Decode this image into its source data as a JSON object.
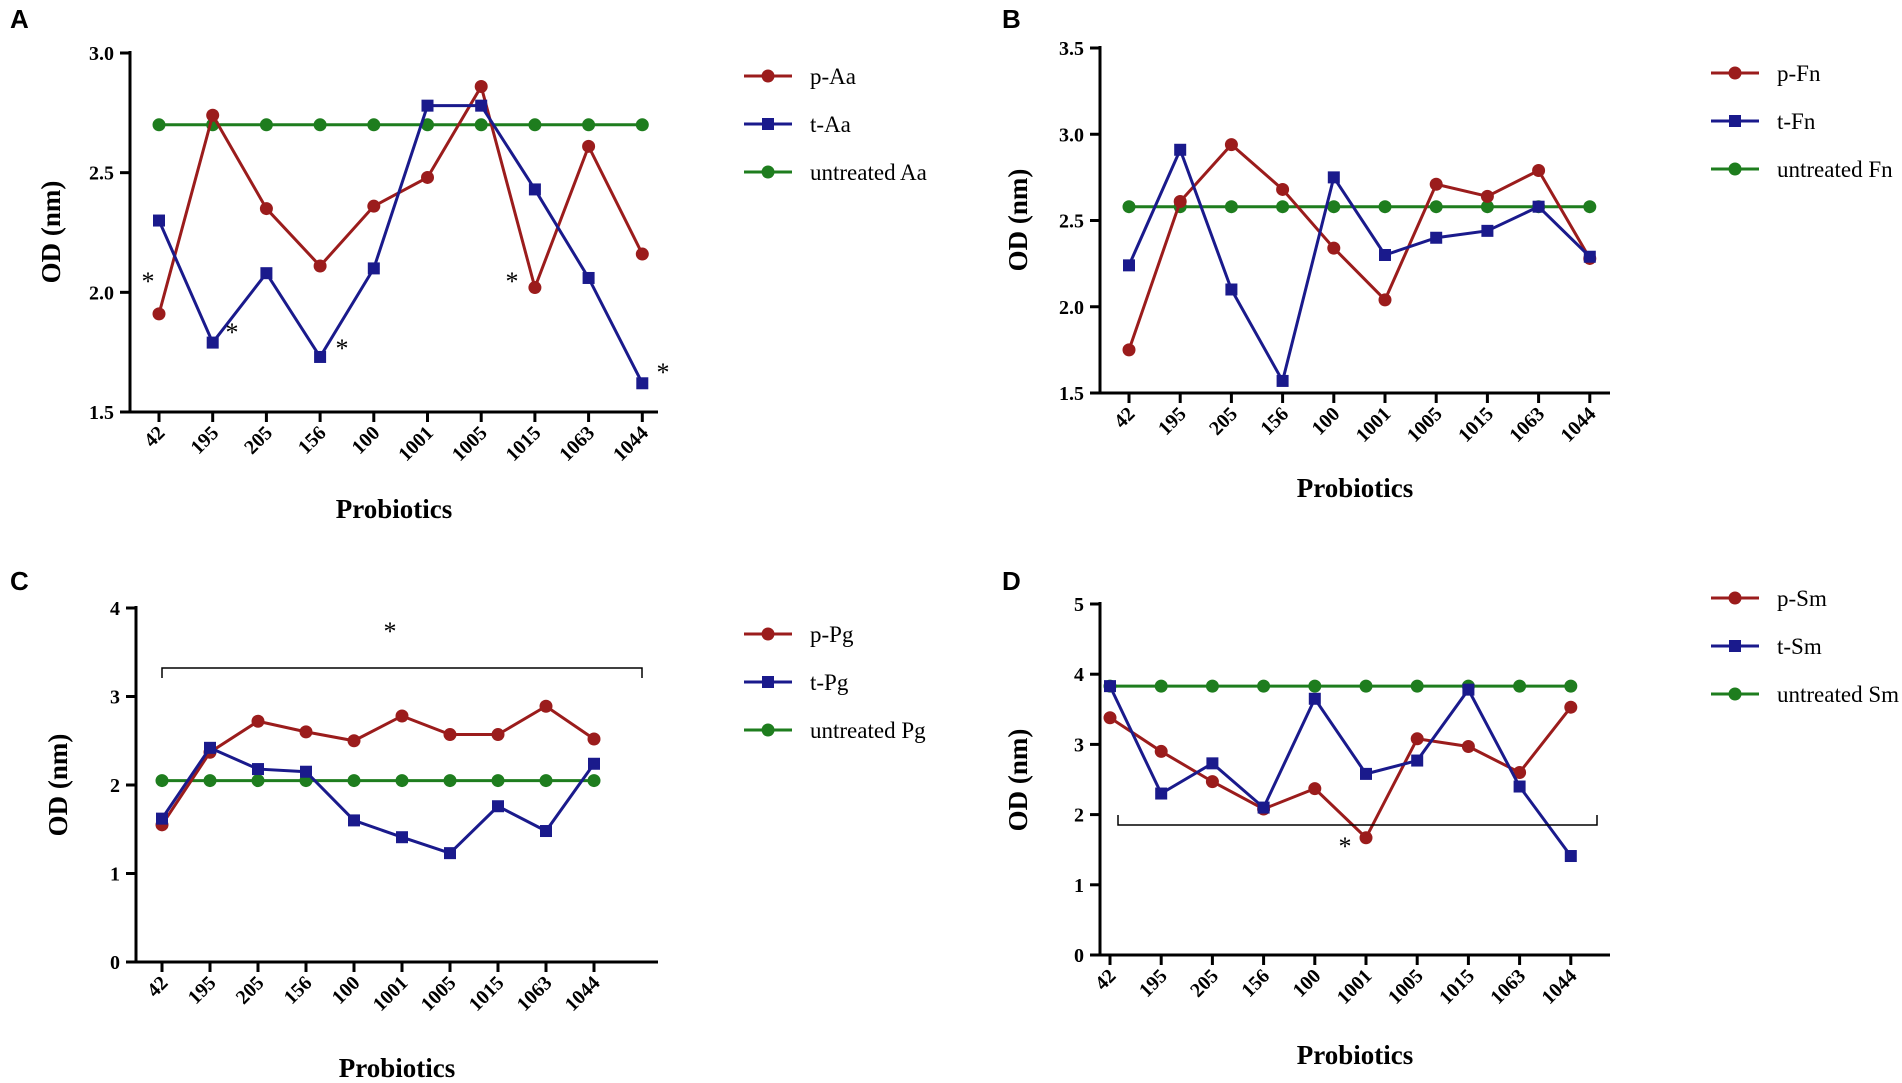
{
  "chart_data": [
    {
      "panel": "A",
      "type": "line",
      "xlabel": "Probiotics",
      "ylabel": "OD (nm)",
      "categories": [
        "42",
        "195",
        "205",
        "156",
        "100",
        "1001",
        "1005",
        "1015",
        "1063",
        "1044"
      ],
      "ylim": [
        1.5,
        3.0
      ],
      "yticks": [
        "1.5",
        "2.0",
        "2.5",
        "3.0"
      ],
      "series": [
        {
          "name": "p-Aa",
          "marker": "circle",
          "color": "#9b1c1c",
          "values": [
            1.91,
            2.74,
            2.35,
            2.11,
            2.36,
            2.48,
            2.86,
            2.02,
            2.61,
            2.16
          ]
        },
        {
          "name": "t-Aa",
          "marker": "square",
          "color": "#1a1a8c",
          "values": [
            2.3,
            1.79,
            2.08,
            1.73,
            2.1,
            2.78,
            2.78,
            2.43,
            2.06,
            1.62
          ]
        },
        {
          "name": "untreated Aa",
          "marker": "circle",
          "color": "#1e7d1e",
          "values": [
            2.7,
            2.7,
            2.7,
            2.7,
            2.7,
            2.7,
            2.7,
            2.7,
            2.7,
            2.7
          ]
        }
      ],
      "annotations": [
        "*",
        "*",
        "*",
        "*",
        "*"
      ]
    },
    {
      "panel": "B",
      "type": "line",
      "xlabel": "Probiotics",
      "ylabel": "OD (nm)",
      "categories": [
        "42",
        "195",
        "205",
        "156",
        "100",
        "1001",
        "1005",
        "1015",
        "1063",
        "1044"
      ],
      "ylim": [
        1.5,
        3.5
      ],
      "yticks": [
        "1.5",
        "2.0",
        "2.5",
        "3.0",
        "3.5"
      ],
      "series": [
        {
          "name": "p-Fn",
          "marker": "circle",
          "color": "#9b1c1c",
          "values": [
            1.75,
            2.61,
            2.94,
            2.68,
            2.34,
            2.04,
            2.71,
            2.64,
            2.79,
            2.28
          ]
        },
        {
          "name": "t-Fn",
          "marker": "square",
          "color": "#1a1a8c",
          "values": [
            2.24,
            2.91,
            2.1,
            1.57,
            2.75,
            2.3,
            2.4,
            2.44,
            2.58,
            2.29
          ]
        },
        {
          "name": "untreated Fn",
          "marker": "circle",
          "color": "#1e7d1e",
          "values": [
            2.58,
            2.58,
            2.58,
            2.58,
            2.58,
            2.58,
            2.58,
            2.58,
            2.58,
            2.58
          ]
        }
      ],
      "annotations": []
    },
    {
      "panel": "C",
      "type": "line",
      "xlabel": "Probiotics",
      "ylabel": "OD (nm)",
      "categories": [
        "42",
        "195",
        "205",
        "156",
        "100",
        "1001",
        "1005",
        "1015",
        "1063",
        "1044"
      ],
      "ylim": [
        0,
        4
      ],
      "yticks": [
        "0",
        "1",
        "2",
        "3",
        "4"
      ],
      "series": [
        {
          "name": "p-Pg",
          "marker": "circle",
          "color": "#9b1c1c",
          "values": [
            1.55,
            2.37,
            2.72,
            2.6,
            2.5,
            2.78,
            2.57,
            2.57,
            2.89,
            2.52
          ]
        },
        {
          "name": "t-Pg",
          "marker": "square",
          "color": "#1a1a8c",
          "values": [
            1.62,
            2.42,
            2.18,
            2.15,
            1.6,
            1.41,
            1.23,
            1.76,
            1.48,
            2.24
          ]
        },
        {
          "name": "untreated Pg",
          "marker": "circle",
          "color": "#1e7d1e",
          "values": [
            2.05,
            2.05,
            2.05,
            2.05,
            2.05,
            2.05,
            2.05,
            2.05,
            2.05,
            2.05
          ]
        }
      ],
      "annotations": [
        "*"
      ]
    },
    {
      "panel": "D",
      "type": "line",
      "xlabel": "Probiotics",
      "ylabel": "OD (nm)",
      "categories": [
        "42",
        "195",
        "205",
        "156",
        "100",
        "1001",
        "1005",
        "1015",
        "1063",
        "1044"
      ],
      "ylim": [
        0,
        5
      ],
      "yticks": [
        "0",
        "1",
        "2",
        "3",
        "4",
        "5"
      ],
      "series": [
        {
          "name": "p-Sm",
          "marker": "circle",
          "color": "#9b1c1c",
          "values": [
            3.38,
            2.9,
            2.47,
            2.08,
            2.37,
            1.67,
            3.08,
            2.97,
            2.6,
            3.53
          ]
        },
        {
          "name": "t-Sm",
          "marker": "square",
          "color": "#1a1a8c",
          "values": [
            3.83,
            2.3,
            2.73,
            2.1,
            3.65,
            2.58,
            2.77,
            3.78,
            2.4,
            1.41
          ]
        },
        {
          "name": "untreated Sm",
          "marker": "circle",
          "color": "#1e7d1e",
          "values": [
            3.83,
            3.83,
            3.83,
            3.83,
            3.83,
            3.83,
            3.83,
            3.83,
            3.83,
            3.83
          ]
        }
      ],
      "annotations": [
        "*"
      ]
    }
  ]
}
